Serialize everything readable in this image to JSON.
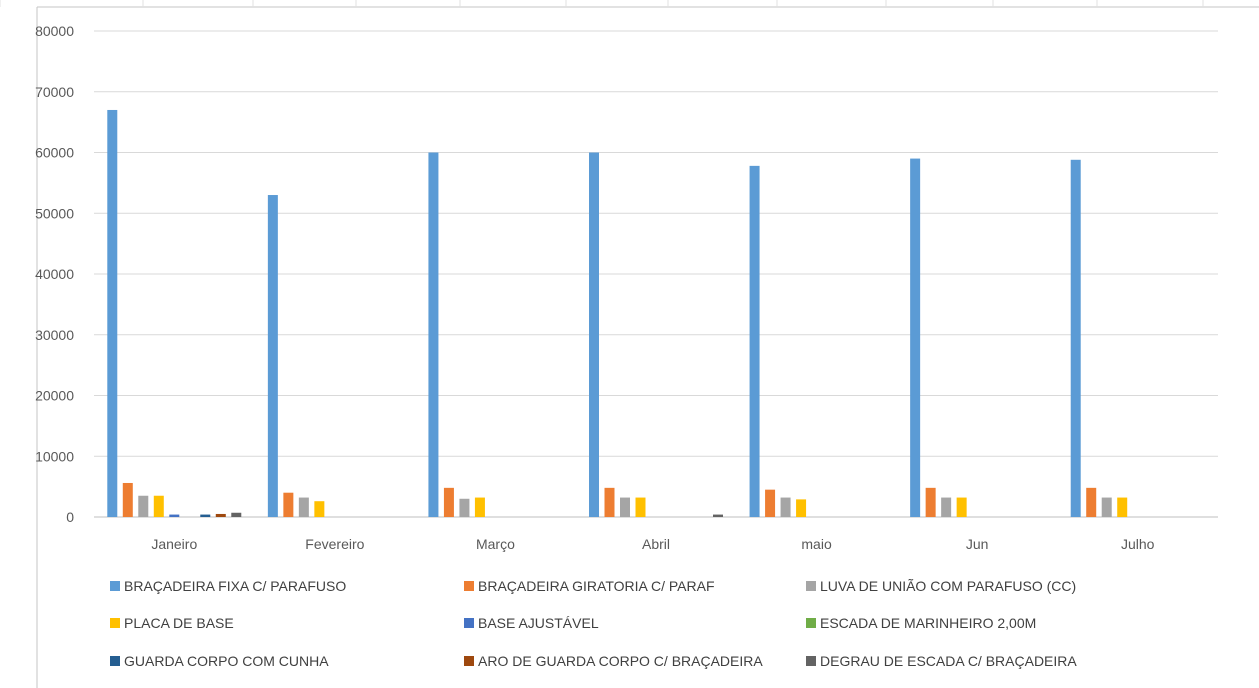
{
  "chart_data": {
    "type": "bar",
    "title": "",
    "xlabel": "",
    "ylabel": "",
    "categories": [
      "Janeiro",
      "Fevereiro",
      "Março",
      "Abril",
      "maio",
      "Jun",
      "Julho"
    ],
    "ylim": [
      0,
      80000
    ],
    "yticks": [
      "0",
      "10000",
      "20000",
      "30000",
      "40000",
      "50000",
      "60000",
      "70000",
      "80000"
    ],
    "grid": true,
    "legend_position": "bottom",
    "series": [
      {
        "name": "BRAÇADEIRA FIXA  C/ PARAFUSO",
        "color": "#5B9BD5",
        "values": [
          67000,
          53000,
          60000,
          60000,
          57800,
          59000,
          58800
        ]
      },
      {
        "name": "BRAÇADEIRA GIRATORIA  C/ PARAF",
        "color": "#ED7D31",
        "values": [
          5600,
          4000,
          4800,
          4800,
          4500,
          4800,
          4800
        ]
      },
      {
        "name": "LUVA DE UNIÃO COM PARAFUSO (CC)",
        "color": "#A5A5A5",
        "values": [
          3500,
          3200,
          3000,
          3200,
          3200,
          3200,
          3200
        ]
      },
      {
        "name": "PLACA DE BASE",
        "color": "#FFC000",
        "values": [
          3500,
          2600,
          3200,
          3200,
          2900,
          3200,
          3200
        ]
      },
      {
        "name": "BASE AJUSTÁVEL",
        "color": "#4472C4",
        "values": [
          400,
          0,
          0,
          0,
          0,
          0,
          0
        ]
      },
      {
        "name": "ESCADA DE MARINHEIRO 2,00M",
        "color": "#70AD47",
        "values": [
          0,
          0,
          0,
          0,
          0,
          0,
          0
        ]
      },
      {
        "name": "GUARDA CORPO COM CUNHA",
        "color": "#255E91",
        "values": [
          400,
          0,
          0,
          0,
          0,
          0,
          0
        ]
      },
      {
        "name": "ARO DE GUARDA CORPO C/ BRAÇADEIRA",
        "color": "#9E480E",
        "values": [
          500,
          0,
          0,
          0,
          0,
          0,
          0
        ]
      },
      {
        "name": "DEGRAU DE ESCADA C/ BRAÇADEIRA",
        "color": "#636363",
        "values": [
          700,
          0,
          0,
          400,
          0,
          0,
          0
        ]
      }
    ]
  }
}
